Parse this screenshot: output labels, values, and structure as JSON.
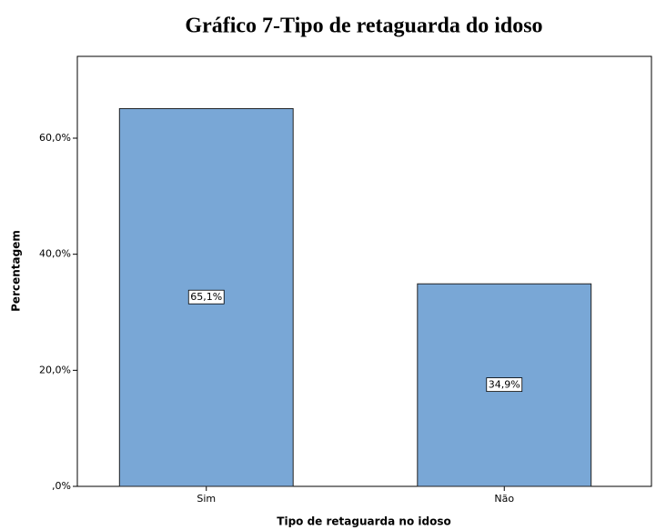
{
  "chart_data": {
    "type": "bar",
    "title": "Gráfico 7-Tipo de retaguarda do idoso",
    "x_label": "Tipo de retaguarda no idoso",
    "y_label": "Percentagem",
    "categories": [
      "Sim",
      "Não"
    ],
    "values": [
      65.1,
      34.9
    ],
    "value_labels": [
      "65,1%",
      "34,9%"
    ],
    "color": "#79a7d6",
    "ylim": [
      0,
      74.1
    ],
    "yticks": [
      {
        "value": 0,
        "label": ",0%"
      },
      {
        "value": 20,
        "label": "20,0%"
      },
      {
        "value": 40,
        "label": "40,0%"
      },
      {
        "value": 60,
        "label": "60,0%"
      }
    ]
  }
}
